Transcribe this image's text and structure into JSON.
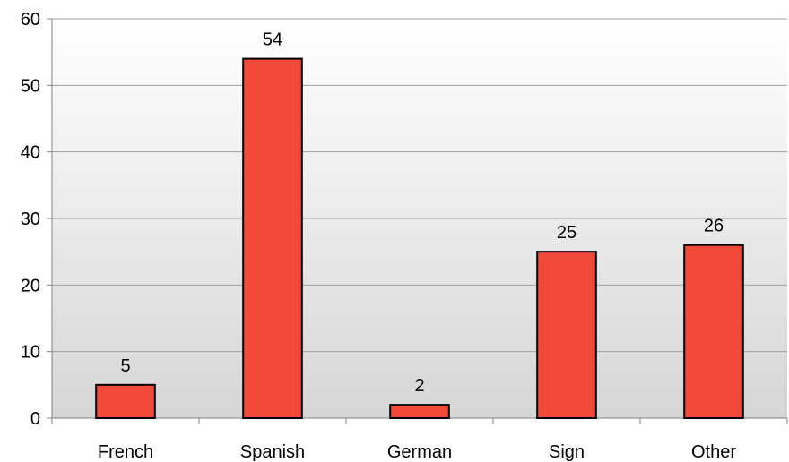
{
  "chart_data": {
    "type": "bar",
    "categories": [
      "French",
      "Spanish",
      "German",
      "Sign",
      "Other"
    ],
    "values": [
      5,
      54,
      2,
      25,
      26
    ],
    "data_labels": [
      "5",
      "54",
      "2",
      "25",
      "26"
    ],
    "ylim": [
      0,
      60
    ],
    "y_ticks": [
      0,
      10,
      20,
      30,
      40,
      50,
      60
    ],
    "y_tick_labels": [
      "0",
      "10",
      "20",
      "30",
      "40",
      "50",
      "60"
    ],
    "grid": true,
    "legend": "none",
    "colors": {
      "bar_fill": "#f24a3a",
      "bar_stroke": "#000000",
      "plot_bg_top": "#ffffff",
      "plot_bg_bottom": "#d6d6d6",
      "grid": "#a0a0a0",
      "axis": "#808080"
    }
  }
}
